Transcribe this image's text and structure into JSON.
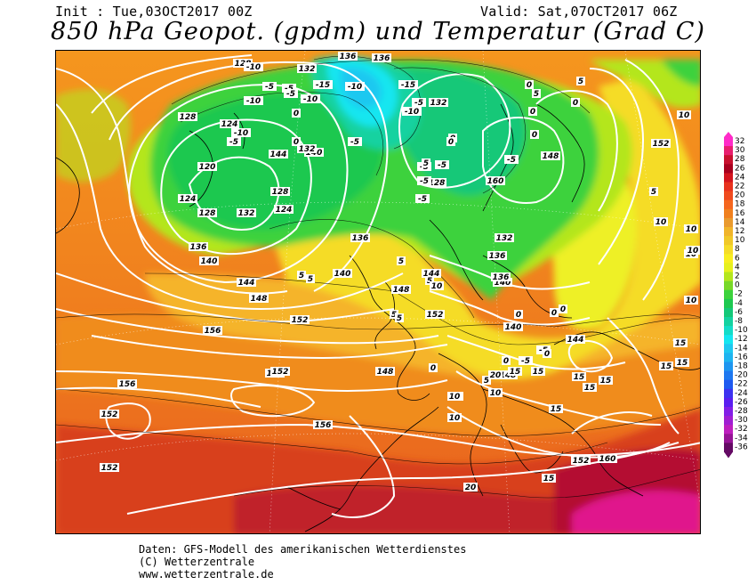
{
  "header": {
    "init": "Init : Tue,03OCT2017 00Z",
    "valid": "Valid: Sat,07OCT2017 06Z",
    "title": "850 hPa Geopot. (gpdm) und Temperatur (Grad C)"
  },
  "colorbar": {
    "ticks": [
      "32",
      "30",
      "28",
      "26",
      "24",
      "22",
      "20",
      "18",
      "16",
      "14",
      "12",
      "10",
      "8",
      "6",
      "4",
      "2",
      "0",
      "-2",
      "-4",
      "-6",
      "-8",
      "-10",
      "-12",
      "-14",
      "-16",
      "-18",
      "-20",
      "-22",
      "-24",
      "-26",
      "-28",
      "-30",
      "-32",
      "-34",
      "-36"
    ],
    "colors": [
      "#ff2bc8",
      "#e81e6e",
      "#c8102e",
      "#a8001e",
      "#d3141e",
      "#e8321e",
      "#f04a1e",
      "#f5661e",
      "#f0801e",
      "#e99a2e",
      "#f0b42a",
      "#f0c828",
      "#f5dc28",
      "#f8ee20",
      "#e6f01e",
      "#b4e61e",
      "#78d828",
      "#3cd23c",
      "#1ec850",
      "#14c878",
      "#14d2a0",
      "#14dcc8",
      "#14e6f0",
      "#1ec8f0",
      "#1eb4f0",
      "#1e96f0",
      "#1e78f0",
      "#1e5af0",
      "#3c32f0",
      "#5a1ef0",
      "#821ee6",
      "#a01ed2",
      "#be1ebe",
      "#961496",
      "#640a64"
    ]
  },
  "map_labels": {
    "geopotential": [
      "128",
      "132",
      "136",
      "136",
      "132",
      "140",
      "144",
      "124",
      "128",
      "120",
      "124",
      "128",
      "132",
      "136",
      "140",
      "144",
      "148",
      "152",
      "156",
      "160",
      "156",
      "152",
      "148",
      "152",
      "156",
      "152",
      "160",
      "132",
      "136",
      "140",
      "144",
      "148",
      "152",
      "128",
      "128",
      "124",
      "132",
      "140",
      "136",
      "144",
      "148",
      "152",
      "136",
      "140",
      "148",
      "152",
      "160"
    ],
    "temperature": [
      "-10",
      "-5",
      "-10",
      "-15",
      "-10",
      "-5",
      "-10",
      "-5",
      "0",
      "-10",
      "-5",
      "0",
      "-5",
      "-15",
      "-10",
      "-5",
      "-5",
      "0",
      "-5",
      "0",
      "5",
      "0",
      "0",
      "0",
      "5",
      "10",
      "5",
      "10",
      "10",
      "10",
      "10",
      "10",
      "15",
      "15",
      "15",
      "20",
      "15",
      "10",
      "5",
      "5",
      "0",
      "-5",
      "-5",
      "-5",
      "0",
      "5",
      "10",
      "15",
      "15",
      "5",
      "10",
      "0",
      "-5",
      "-5",
      "5",
      "5",
      "5",
      "0",
      "0",
      "0",
      "0",
      "10",
      "5",
      "10",
      "15",
      "15",
      "15",
      "20",
      "15"
    ]
  },
  "footer": {
    "line1": "Daten: GFS-Modell des amerikanischen Wetterdienstes",
    "line2": "(C) Wetterzentrale",
    "line3": "www.wetterzentrale.de"
  }
}
